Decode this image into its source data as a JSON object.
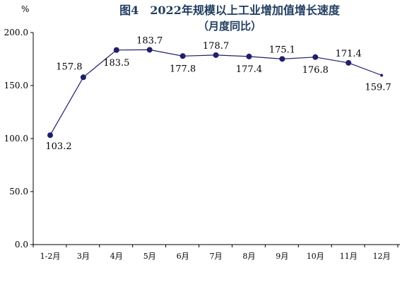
{
  "chart_data": {
    "type": "line",
    "title": "图4　2022年规模以上工业增加值增长速度",
    "subtitle": "（月度同比）",
    "ylabel": "%",
    "ylim": [
      0,
      200
    ],
    "yticks": [
      "0.0",
      "50.0",
      "100.0",
      "150.0",
      "200.0"
    ],
    "ytick_values": [
      0,
      50,
      100,
      150,
      200
    ],
    "categories": [
      "1-2月",
      "3月",
      "4月",
      "5月",
      "6月",
      "7月",
      "8月",
      "9月",
      "10月",
      "11月",
      "12月"
    ],
    "values": [
      103.2,
      157.8,
      183.5,
      183.7,
      177.8,
      178.7,
      177.4,
      175.1,
      176.8,
      171.4,
      159.7
    ],
    "value_labels": [
      "103.2",
      "157.8",
      "183.5",
      "183.7",
      "177.8",
      "178.7",
      "177.4",
      "175.1",
      "176.8",
      "171.4",
      "159.7"
    ],
    "label_position": [
      "below",
      "above",
      "below",
      "above",
      "below",
      "above",
      "below",
      "above",
      "below",
      "above",
      "below"
    ],
    "grid": false,
    "legend": "none",
    "colors": {
      "line": "#1f1f6b",
      "marker": "#1f1f6b",
      "title": "#1f3c5f",
      "axis": "#000000"
    }
  }
}
